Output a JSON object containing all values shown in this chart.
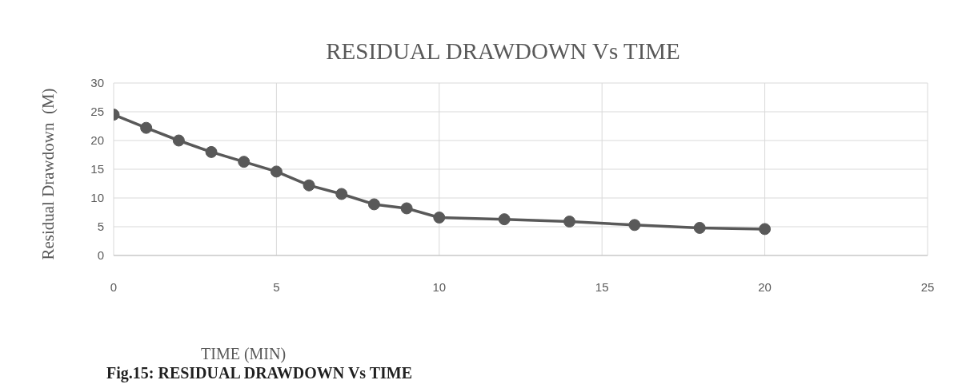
{
  "chart_data": {
    "type": "line",
    "title": "RESIDUAL DRAWDOWN Vs TIME",
    "xlabel": "TIME (MIN)",
    "ylabel": "Residual Drawdown  (M)",
    "annotations": [
      "Fig.15: RESIDUAL DRAWDOWN Vs TIME"
    ],
    "x": [
      0,
      1,
      2,
      3,
      4,
      5,
      6,
      7,
      8,
      9,
      10,
      12,
      14,
      16,
      18,
      20
    ],
    "series": [
      {
        "color": "#595959",
        "values": [
          24.5,
          22.2,
          20.0,
          18.0,
          16.3,
          14.6,
          12.2,
          10.7,
          8.9,
          8.2,
          6.6,
          6.3,
          5.9,
          5.3,
          4.8,
          4.6
        ]
      }
    ],
    "xlim": [
      0,
      25
    ],
    "xticks": [
      0,
      5,
      10,
      15,
      20,
      25
    ],
    "ylim": [
      0,
      30
    ],
    "yticks": [
      0,
      5,
      10,
      15,
      20,
      25,
      30
    ],
    "grid": true,
    "legend": false,
    "marker": "circle",
    "line_style": "solid"
  }
}
